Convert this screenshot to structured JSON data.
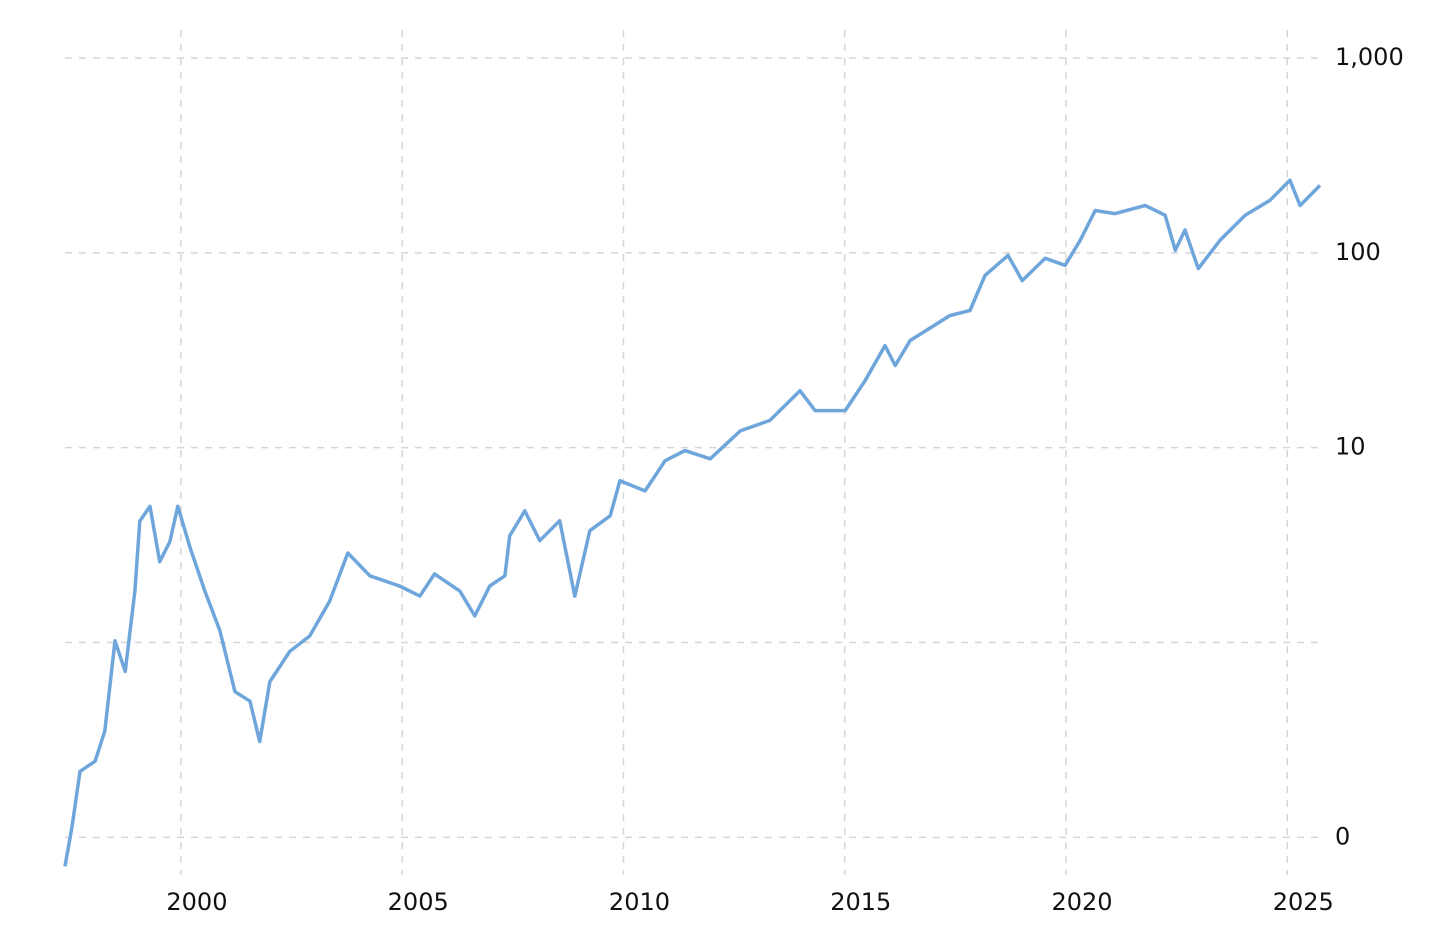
{
  "chart_data": {
    "type": "line",
    "log_y": true,
    "grid": true,
    "xlim": [
      1997.38,
      2025.74
    ],
    "xticks": [
      2000,
      2005,
      2010,
      2015,
      2020,
      2025
    ],
    "ylim": [
      0.068,
      1000
    ],
    "yticks": [
      {
        "value": 1000,
        "label": "1,000"
      },
      100,
      10,
      {
        "value": 1,
        "label": null
      },
      {
        "value": 0.1,
        "label": "0"
      }
    ],
    "series": [
      {
        "color": "#6ea6dc",
        "x": [
          1997.38,
          1997.54,
          1997.72,
          1998.06,
          1998.28,
          1998.51,
          1998.74,
          1998.96,
          1999.07,
          1999.3,
          1999.52,
          1999.75,
          1999.93,
          2000.2,
          2000.54,
          2000.88,
          2001.22,
          2001.56,
          2001.78,
          2002.01,
          2002.46,
          2002.91,
          2003.36,
          2003.77,
          2004.27,
          2004.94,
          2005.4,
          2005.73,
          2006.3,
          2006.64,
          2006.98,
          2007.32,
          2007.43,
          2007.77,
          2008.11,
          2008.56,
          2008.9,
          2009.24,
          2009.7,
          2009.92,
          2010.49,
          2010.94,
          2011.39,
          2011.96,
          2012.64,
          2013.31,
          2013.99,
          2014.33,
          2015.01,
          2015.46,
          2015.91,
          2016.14,
          2016.48,
          2017.38,
          2017.83,
          2018.17,
          2018.69,
          2019.01,
          2019.53,
          2019.98,
          2020.32,
          2020.66,
          2021.11,
          2021.79,
          2022.24,
          2022.47,
          2022.69,
          2022.99,
          2023.48,
          2024.05,
          2024.61,
          2025.06,
          2025.29,
          2025.74
        ],
        "values": [
          0.071,
          0.114,
          0.218,
          0.246,
          0.351,
          1.02,
          0.71,
          1.84,
          4.2,
          5.0,
          2.6,
          3.3,
          5.0,
          3.1,
          1.84,
          1.15,
          0.56,
          0.5,
          0.31,
          0.63,
          0.9,
          1.08,
          1.63,
          2.88,
          2.2,
          1.95,
          1.73,
          2.25,
          1.84,
          1.37,
          1.95,
          2.2,
          3.53,
          4.74,
          3.33,
          4.22,
          1.73,
          3.75,
          4.47,
          6.76,
          6.0,
          8.57,
          9.66,
          8.77,
          12.2,
          13.8,
          19.6,
          15.5,
          15.5,
          22.1,
          33.4,
          26.4,
          35.5,
          47.7,
          50.6,
          76.6,
          97,
          72,
          93.8,
          86.3,
          116,
          165,
          159,
          175,
          156,
          103,
          131,
          83,
          116,
          156,
          186,
          236,
          175,
          222
        ]
      }
    ]
  }
}
